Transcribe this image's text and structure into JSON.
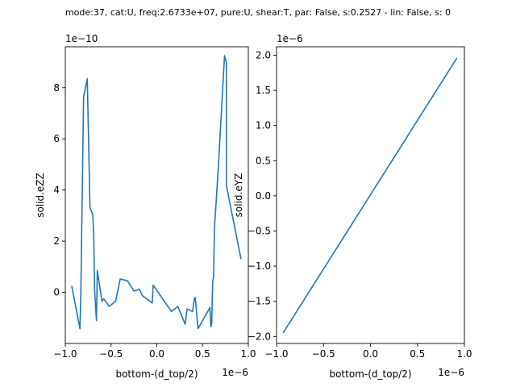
{
  "figure": {
    "suptitle": "mode:37, cat:U, freq:2.6733e+07, pure:U, shear:T, par: False, s:0.2527 - lin: False, s: 0"
  },
  "colors": {
    "line": "#1f77b4",
    "axes": "#000000",
    "background": "#ffffff"
  },
  "chart_data": [
    {
      "type": "line",
      "xlabel": "bottom-(d_top/2)",
      "ylabel": "solid.eZZ",
      "x_offset_text": "1e−6",
      "y_offset_text": "1e−10",
      "x_scale": 1e-06,
      "y_scale": 1e-10,
      "xlim": [
        -1e-06,
        1e-06
      ],
      "ylim": [
        -2e-10,
        9.6e-10
      ],
      "xticks": [
        -1.0,
        -0.5,
        0.0,
        0.5,
        1.0
      ],
      "xtick_labels": [
        "−1.0",
        "−0.5",
        "0.0",
        "0.5",
        "1.0"
      ],
      "yticks": [
        0,
        2,
        4,
        6,
        8
      ],
      "ytick_labels": [
        "0",
        "2",
        "4",
        "6",
        "8"
      ],
      "grid": false,
      "legend": "none",
      "series": [
        {
          "x": [
            -9.3e-07,
            -8.4e-07,
            -8.3e-07,
            -8e-07,
            -7.6e-07,
            -7.3e-07,
            -7e-07,
            -6.9e-07,
            -6.8e-07,
            -6.6e-07,
            -6.5e-07,
            -6e-07,
            -5.8e-07,
            -5.2e-07,
            -4.5e-07,
            -4e-07,
            -3.2e-07,
            -2.5e-07,
            -1.9e-07,
            -1.6e-07,
            -5e-08,
            -4e-08,
            1.6e-07,
            2.3e-07,
            3.1e-07,
            3.3e-07,
            3.9e-07,
            4.1e-07,
            4.2e-07,
            4.5e-07,
            5.8e-07,
            5.9e-07,
            6e-07,
            6.1e-07,
            6.2e-07,
            6.3e-07,
            6.7e-07,
            7.4e-07,
            7.5e-07,
            7.6e-07,
            7.6e-07,
            7.7e-07,
            9.2e-07
          ],
          "y": [
            2.5e-11,
            -1.42e-10,
            0.0,
            7.65e-10,
            8.35e-10,
            3.3e-10,
            3.05e-10,
            2.3e-10,
            1e-11,
            -1.1e-10,
            8.5e-11,
            -3.5e-11,
            -2.5e-11,
            -5.5e-11,
            -3.5e-11,
            5.2e-11,
            4.5e-11,
            5e-12,
            1.2e-11,
            -1.2e-11,
            -4.2e-11,
            2.8e-11,
            -7.5e-11,
            -5.5e-11,
            -1.25e-10,
            -6.5e-11,
            -7.5e-11,
            -2.5e-11,
            -2e-11,
            -1.42e-10,
            -6e-11,
            -1.35e-10,
            -1.2e-10,
            4e-11,
            6e-11,
            2.5e-10,
            4.75e-10,
            9.25e-10,
            9.1e-10,
            9e-10,
            4.2e-10,
            4e-10,
            1.3e-10
          ]
        }
      ]
    },
    {
      "type": "line",
      "xlabel": "bottom-(d_top/2)",
      "ylabel": "solid.eYZ",
      "x_offset_text": "1e−6",
      "y_offset_text": "1e−6",
      "x_scale": 1e-06,
      "y_scale": 1e-06,
      "xlim": [
        -1e-06,
        1e-06
      ],
      "ylim": [
        -2.1e-06,
        2.12e-06
      ],
      "xticks": [
        -1.0,
        -0.5,
        0.0,
        0.5,
        1.0
      ],
      "xtick_labels": [
        "−1.0",
        "−0.5",
        "0.0",
        "0.5",
        "1.0"
      ],
      "yticks": [
        -2.0,
        -1.5,
        -1.0,
        -0.5,
        0.0,
        0.5,
        1.0,
        1.5,
        2.0
      ],
      "ytick_labels": [
        "−2.0",
        "−1.5",
        "−1.0",
        "−0.5",
        "0.0",
        "0.5",
        "1.0",
        "1.5",
        "2.0"
      ],
      "grid": false,
      "legend": "none",
      "series": [
        {
          "x": [
            -9.3e-07,
            9.2e-07
          ],
          "y": [
            -1.95e-06,
            1.96e-06
          ]
        }
      ]
    }
  ]
}
